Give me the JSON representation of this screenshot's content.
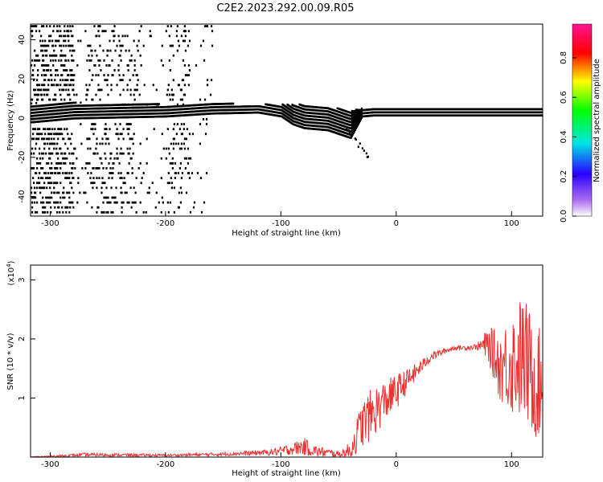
{
  "title": "C2E2.2023.292.00.09.R05",
  "chart_data": [
    {
      "type": "heatmap",
      "xlabel": "Height of straight line (km)",
      "ylabel": "Frequency (Hz)",
      "xlim": [
        -317,
        127
      ],
      "ylim": [
        -50,
        48
      ],
      "x_ticks": [
        "-300",
        "-200",
        "-100",
        "0",
        "100"
      ],
      "y_ticks": [
        "-40",
        "-20",
        "0",
        "20",
        "40"
      ],
      "colorbar": {
        "label": "Normalized spectral amplitude",
        "range": [
          0,
          0.97
        ],
        "ticks": [
          "0.0",
          "0.2",
          "0.4",
          "0.6",
          "0.8"
        ],
        "colors": [
          "#ffffff",
          "#8a2be2",
          "#2a00ff",
          "#00e6e6",
          "#00ff00",
          "#ffff00",
          "#ff0000",
          "#ff1493"
        ]
      },
      "grid": false,
      "ridge": {
        "x": [
          -317,
          -280,
          -200,
          -160,
          -120,
          -100,
          -90,
          -80,
          -60,
          -40,
          -30,
          -20,
          0,
          50,
          100,
          127
        ],
        "center": [
          2,
          3,
          3,
          4,
          4,
          3,
          1,
          0,
          -1,
          -4,
          2,
          2,
          2,
          2,
          2,
          2
        ],
        "halfwidth": [
          6,
          5,
          4,
          3.5,
          3,
          4,
          6,
          7,
          7,
          8,
          3,
          2.5,
          2.5,
          2.5,
          2.5,
          2.5
        ],
        "peak": [
          0.15,
          0.35,
          0.5,
          0.55,
          0.5,
          0.45,
          0.45,
          0.45,
          0.5,
          0.4,
          0.7,
          0.8,
          0.85,
          0.7,
          0.8,
          0.7
        ]
      }
    },
    {
      "type": "line",
      "xlabel": "Height of straight line (km)",
      "ylabel": "SNR (10 * v/v)",
      "y_multiplier_label": "(x10",
      "y_multiplier_exp": "4",
      "y_multiplier_close": ")",
      "xlim": [
        -317,
        127
      ],
      "ylim": [
        0,
        3.25
      ],
      "x_ticks": [
        "-300",
        "-200",
        "-100",
        "0",
        "100"
      ],
      "y_ticks": [
        "1",
        "2",
        "3"
      ],
      "color": "#ee3030",
      "grid": false,
      "envelope": {
        "x": [
          -317,
          -290,
          -270,
          -200,
          -150,
          -110,
          -100,
          -90,
          -80,
          -70,
          -50,
          -40,
          -30,
          -20,
          -10,
          0,
          10,
          20,
          30,
          40,
          50,
          60,
          70,
          80,
          90,
          100,
          110,
          120,
          127
        ],
        "base": [
          0.0,
          0.02,
          0.04,
          0.03,
          0.05,
          0.08,
          0.1,
          0.14,
          0.18,
          0.1,
          0.05,
          0.1,
          0.55,
          0.75,
          0.95,
          1.1,
          1.3,
          1.5,
          1.7,
          1.78,
          1.85,
          1.85,
          1.87,
          1.9,
          1.55,
          1.6,
          1.7,
          1.3,
          1.2
        ],
        "amp": [
          0.01,
          0.02,
          0.03,
          0.02,
          0.03,
          0.05,
          0.08,
          0.1,
          0.15,
          0.1,
          0.05,
          0.15,
          0.4,
          0.45,
          0.35,
          0.3,
          0.2,
          0.12,
          0.08,
          0.05,
          0.04,
          0.04,
          0.05,
          0.3,
          0.6,
          0.9,
          1.1,
          1.0,
          0.9
        ]
      }
    }
  ]
}
